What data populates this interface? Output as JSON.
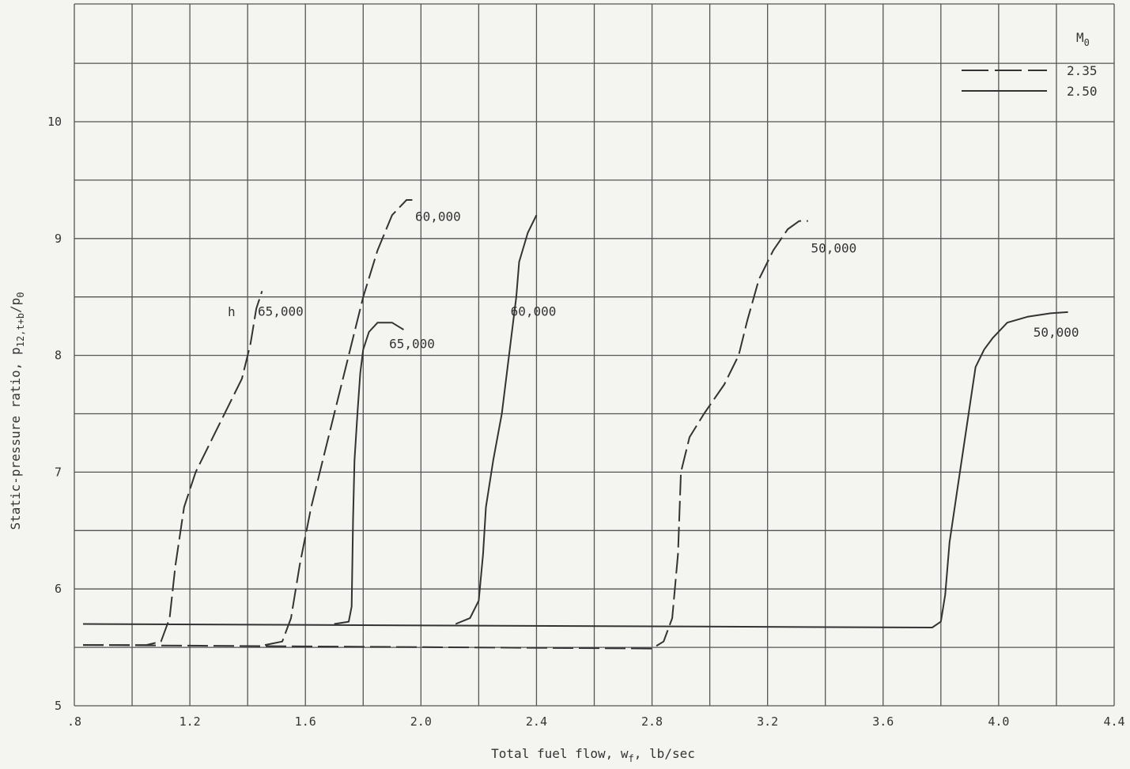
{
  "chart_data": {
    "type": "line",
    "title": "",
    "xlabel": "Total fuel flow, w",
    "xlabel_sub": "f",
    "xlabel_unit": ", lb/sec",
    "ylabel": "Static-pressure ratio, p",
    "ylabel_sub": "12,t+b",
    "ylabel_tail": "/p",
    "ylabel_sub2": "0",
    "xlim": [
      0.8,
      4.4
    ],
    "ylim": [
      5,
      10.8
    ],
    "x_ticks": [
      ".8",
      "1.2",
      "1.6",
      "2.0",
      "2.4",
      "2.8",
      "3.2",
      "3.6",
      "4.0",
      "4.4"
    ],
    "x_tick_values": [
      0.8,
      1.2,
      1.6,
      2.0,
      2.4,
      2.8,
      3.2,
      3.6,
      4.0,
      4.4
    ],
    "y_ticks": [
      "5",
      "6",
      "7",
      "8",
      "9",
      "10"
    ],
    "y_tick_values": [
      5,
      6,
      7,
      8,
      9,
      10
    ],
    "grid": true,
    "legend": {
      "title": "M",
      "title_sub": "0",
      "placement": "top-right",
      "entries": [
        {
          "label": "2.35",
          "style": "dashed"
        },
        {
          "label": "2.50",
          "style": "solid"
        }
      ]
    },
    "curve_header_label": "h",
    "series": [
      {
        "name": "2.35",
        "style": "dashed",
        "label": "65,000",
        "label_at": [
          1.435,
          8.34
        ],
        "points": [
          [
            0.83,
            5.52
          ],
          [
            1.05,
            5.52
          ],
          [
            1.1,
            5.55
          ],
          [
            1.13,
            5.75
          ],
          [
            1.15,
            6.2
          ],
          [
            1.18,
            6.7
          ],
          [
            1.22,
            7.0
          ],
          [
            1.28,
            7.3
          ],
          [
            1.34,
            7.6
          ],
          [
            1.38,
            7.8
          ],
          [
            1.41,
            8.1
          ],
          [
            1.43,
            8.4
          ],
          [
            1.45,
            8.55
          ]
        ]
      },
      {
        "name": "2.35",
        "style": "dashed",
        "label": "60,000",
        "label_at": [
          1.98,
          9.15
        ],
        "points": [
          [
            1.46,
            5.52
          ],
          [
            1.52,
            5.55
          ],
          [
            1.55,
            5.75
          ],
          [
            1.58,
            6.2
          ],
          [
            1.62,
            6.7
          ],
          [
            1.66,
            7.1
          ],
          [
            1.7,
            7.5
          ],
          [
            1.75,
            8.0
          ],
          [
            1.8,
            8.5
          ],
          [
            1.85,
            8.9
          ],
          [
            1.9,
            9.2
          ],
          [
            1.95,
            9.33
          ],
          [
            1.97,
            9.33
          ]
        ]
      },
      {
        "name": "2.35",
        "style": "dashed",
        "label": "50,000",
        "label_at": [
          3.35,
          8.88
        ],
        "points": [
          [
            0.83,
            5.52
          ],
          [
            2.8,
            5.49
          ],
          [
            2.84,
            5.55
          ],
          [
            2.87,
            5.75
          ],
          [
            2.89,
            6.3
          ],
          [
            2.9,
            7.0
          ],
          [
            2.93,
            7.3
          ],
          [
            2.98,
            7.5
          ],
          [
            3.05,
            7.75
          ],
          [
            3.1,
            8.0
          ],
          [
            3.13,
            8.3
          ],
          [
            3.17,
            8.65
          ],
          [
            3.22,
            8.9
          ],
          [
            3.27,
            9.08
          ],
          [
            3.31,
            9.15
          ],
          [
            3.34,
            9.15
          ]
        ]
      },
      {
        "name": "2.50",
        "style": "solid",
        "label": "65,000",
        "label_at": [
          1.89,
          8.06
        ],
        "points": [
          [
            1.7,
            5.7
          ],
          [
            1.75,
            5.72
          ],
          [
            1.76,
            5.85
          ],
          [
            1.765,
            6.6
          ],
          [
            1.77,
            7.1
          ],
          [
            1.78,
            7.5
          ],
          [
            1.79,
            7.85
          ],
          [
            1.8,
            8.05
          ],
          [
            1.82,
            8.2
          ],
          [
            1.85,
            8.28
          ],
          [
            1.9,
            8.28
          ],
          [
            1.94,
            8.22
          ]
        ]
      },
      {
        "name": "2.50",
        "style": "solid",
        "label": "60,000",
        "label_at": [
          2.31,
          8.34
        ],
        "points": [
          [
            2.12,
            5.7
          ],
          [
            2.17,
            5.75
          ],
          [
            2.2,
            5.9
          ],
          [
            2.215,
            6.3
          ],
          [
            2.225,
            6.7
          ],
          [
            2.25,
            7.1
          ],
          [
            2.28,
            7.5
          ],
          [
            2.3,
            7.9
          ],
          [
            2.32,
            8.3
          ],
          [
            2.33,
            8.5
          ],
          [
            2.34,
            8.8
          ],
          [
            2.37,
            9.05
          ],
          [
            2.4,
            9.2
          ]
        ]
      },
      {
        "name": "2.50",
        "style": "solid",
        "label": "50,000",
        "label_at": [
          4.12,
          8.16
        ],
        "points": [
          [
            0.83,
            5.7
          ],
          [
            3.77,
            5.67
          ],
          [
            3.8,
            5.72
          ],
          [
            3.815,
            5.95
          ],
          [
            3.83,
            6.4
          ],
          [
            3.86,
            6.9
          ],
          [
            3.89,
            7.4
          ],
          [
            3.92,
            7.9
          ],
          [
            3.95,
            8.05
          ],
          [
            3.98,
            8.15
          ],
          [
            4.03,
            8.28
          ],
          [
            4.1,
            8.33
          ],
          [
            4.18,
            8.36
          ],
          [
            4.24,
            8.37
          ]
        ]
      }
    ]
  }
}
